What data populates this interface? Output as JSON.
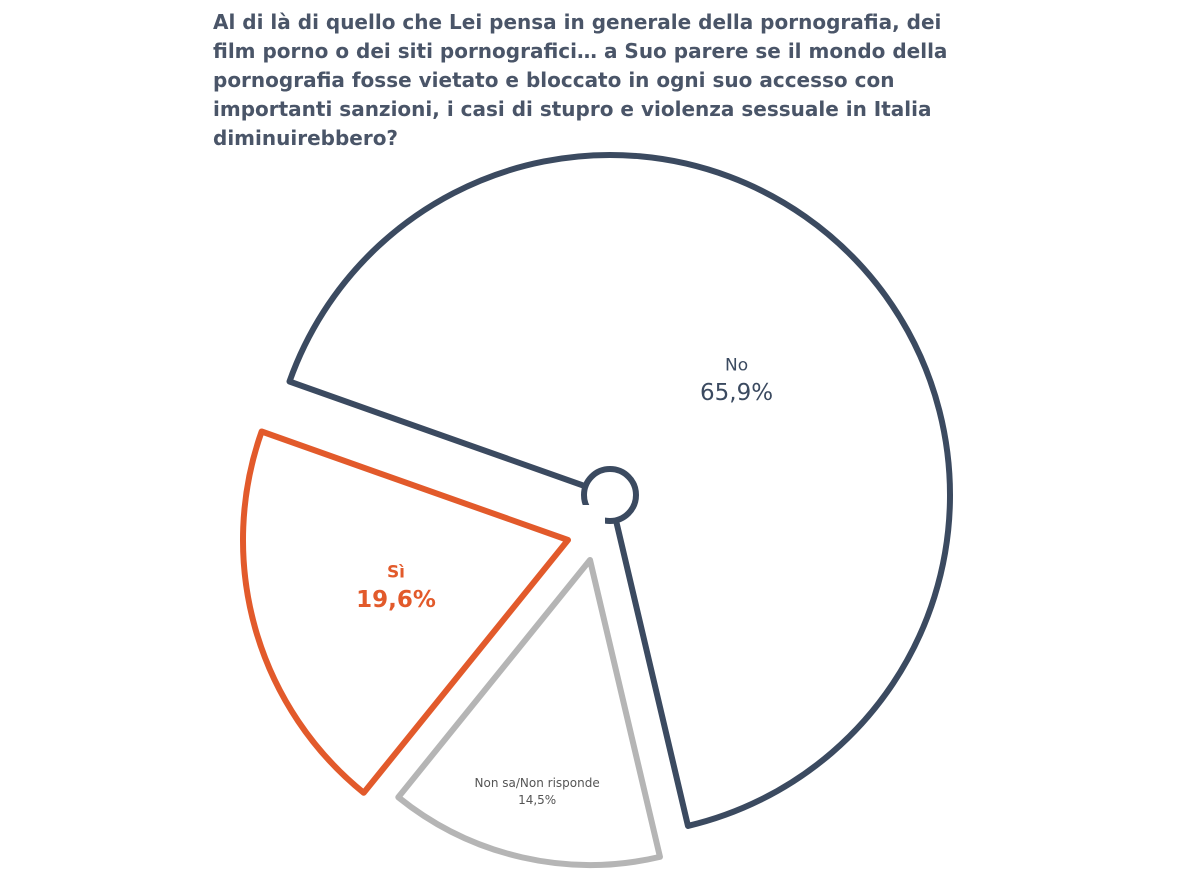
{
  "chart_data": {
    "type": "pie",
    "title": "Al di là di quello che Lei pensa in generale della pornografia, dei film porno o dei siti pornografici… a Suo parere se il mondo della pornografia fosse vietato e bloccato in ogni suo accesso con importanti sanzioni, i casi di stupro e violenza sessuale in Italia diminuirebbero?",
    "categories": [
      "No",
      "Non sa/Non risponde",
      "Sì"
    ],
    "values": [
      65.9,
      14.5,
      19.6
    ],
    "value_labels": [
      "65,9%",
      "14,5%",
      "19,6%"
    ],
    "colors": [
      "#3b4a60",
      "#b5b5b5",
      "#e25a2b"
    ]
  }
}
